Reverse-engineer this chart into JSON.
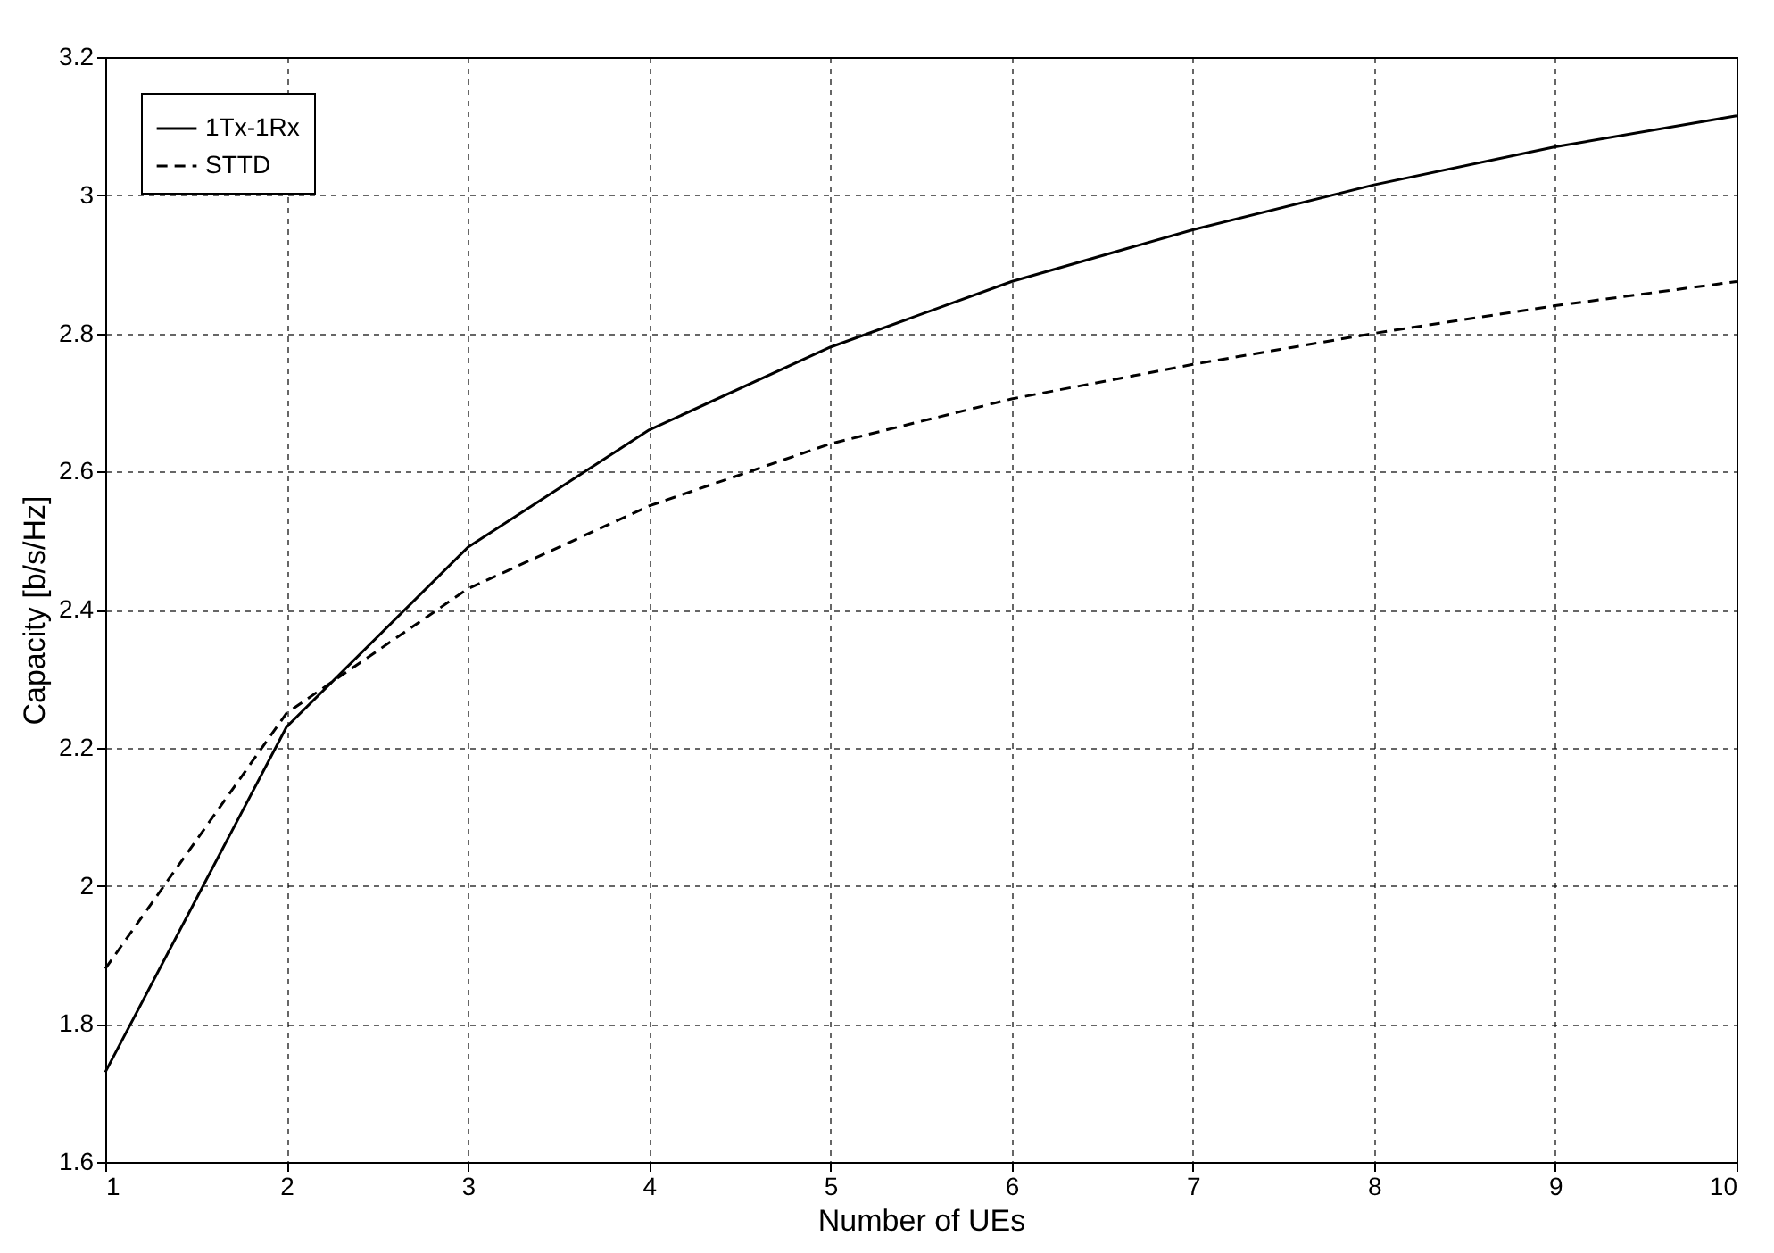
{
  "chart_data": {
    "type": "line",
    "xlabel": "Number of UEs",
    "ylabel": "Capacity [b/s/Hz]",
    "x": [
      1,
      2,
      3,
      4,
      5,
      6,
      7,
      8,
      9,
      10
    ],
    "series": [
      {
        "name": "1Tx-1Rx",
        "color": "#000000",
        "line_style": "solid",
        "values": [
          1.73,
          2.23,
          2.49,
          2.66,
          2.78,
          2.875,
          2.95,
          3.015,
          3.07,
          3.115
        ]
      },
      {
        "name": "STTD",
        "color": "#000000",
        "line_style": "dashed",
        "values": [
          1.88,
          2.25,
          2.43,
          2.55,
          2.64,
          2.705,
          2.755,
          2.8,
          2.84,
          2.875
        ]
      }
    ],
    "xlim": [
      1,
      10
    ],
    "xticks": [
      1,
      2,
      3,
      4,
      5,
      6,
      7,
      8,
      9,
      10
    ],
    "ylim": [
      1.6,
      3.2
    ],
    "yticks": [
      1.6,
      1.8,
      2,
      2.2,
      2.4,
      2.6,
      2.8,
      3,
      3.2
    ],
    "grid": true,
    "legend": "top left",
    "marker": "none"
  }
}
